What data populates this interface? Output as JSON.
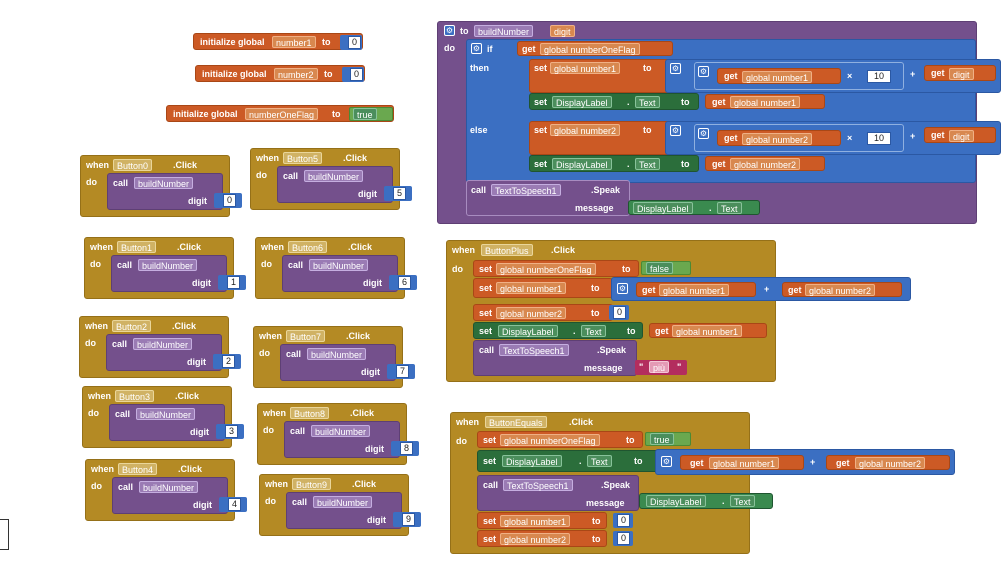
{
  "globals": {
    "init_label": "initialize global",
    "to_label": "to",
    "number1": {
      "name": "number1",
      "value": "0"
    },
    "number2": {
      "name": "number2",
      "value": "0"
    },
    "flag": {
      "name": "numberOneFlag",
      "value": "true"
    }
  },
  "words": {
    "when": "when",
    "do": "do",
    "call": "call",
    "click": ".Click",
    "digit": "digit",
    "to": "to",
    "if": "if",
    "then": "then",
    "else": "else",
    "set": "set",
    "get": "get",
    "speak": ".Speak",
    "message": "message",
    "times": "×",
    "plus": "+",
    "dot": "."
  },
  "digit_handlers": [
    {
      "button": "Button0",
      "proc": "buildNumber",
      "digit": "0"
    },
    {
      "button": "Button1",
      "proc": "buildNumber",
      "digit": "1"
    },
    {
      "button": "Button2",
      "proc": "buildNumber",
      "digit": "2"
    },
    {
      "button": "Button3",
      "proc": "buildNumber",
      "digit": "3"
    },
    {
      "button": "Button4",
      "proc": "buildNumber",
      "digit": "4"
    },
    {
      "button": "Button5",
      "proc": "buildNumber",
      "digit": "5"
    },
    {
      "button": "Button6",
      "proc": "buildNumber",
      "digit": "6"
    },
    {
      "button": "Button7",
      "proc": "buildNumber",
      "digit": "7"
    },
    {
      "button": "Button8",
      "proc": "buildNumber",
      "digit": "8"
    },
    {
      "button": "Button9",
      "proc": "buildNumber",
      "digit": "9"
    }
  ],
  "procedure": {
    "name": "buildNumber",
    "param": "digit",
    "cond": "global numberOneFlag",
    "then_var": "global number1",
    "else_var": "global number2",
    "multiplier": "10",
    "get_digit": "digit",
    "label_comp": "DisplayLabel",
    "label_prop": "Text",
    "tts_comp": "TextToSpeech1",
    "msg_comp": "DisplayLabel",
    "msg_prop": "Text"
  },
  "plus_handler": {
    "button": "ButtonPlus",
    "flag_var": "global numberOneFlag",
    "flag_value": "false",
    "n1": "global number1",
    "n2": "global number2",
    "zero": "0",
    "label_comp": "DisplayLabel",
    "label_prop": "Text",
    "tts_comp": "TextToSpeech1",
    "message_text": "più",
    "quote_open": "\"",
    "quote_close": "\""
  },
  "equals_handler": {
    "button": "ButtonEquals",
    "flag_var": "global numberOneFlag",
    "flag_value": "true",
    "label_comp": "DisplayLabel",
    "label_prop": "Text",
    "n1": "global number1",
    "n2": "global number2",
    "tts_comp": "TextToSpeech1",
    "msg_comp": "DisplayLabel",
    "msg_prop": "Text",
    "zero": "0"
  },
  "colors": {
    "procedure": "#74508c",
    "event": "#b48a24",
    "variable": "#cc5a25",
    "component_set": "#2b6e3b",
    "math": "#3b6fc2",
    "logic": "#6aa84f",
    "text": "#b32d5e"
  }
}
